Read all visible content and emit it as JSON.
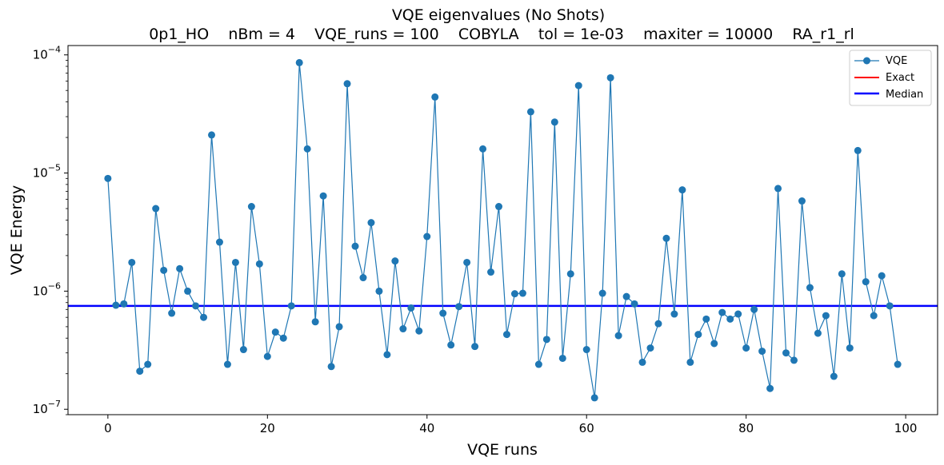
{
  "chart_data": {
    "type": "line",
    "title": "VQE eigenvalues (No Shots)",
    "subtitle": "0p1_HO    nBm = 4    VQE_runs = 100    COBYLA    tol = 1e-03    maxiter = 10000    RA_r1_rl",
    "xlabel": "VQE runs",
    "ylabel": "VQE Energy",
    "xlim": [
      -5,
      104
    ],
    "ylim": [
      9e-08,
      0.00012
    ],
    "yscale": "log",
    "xticks": [
      0,
      20,
      40,
      60,
      80,
      100
    ],
    "xtick_labels": [
      "0",
      "20",
      "40",
      "60",
      "80",
      "100"
    ],
    "yticks": [
      1e-07,
      1e-06,
      1e-05,
      0.0001
    ],
    "ytick_labels": [
      {
        "base": "10",
        "exp": "−7"
      },
      {
        "base": "10",
        "exp": "−6"
      },
      {
        "base": "10",
        "exp": "−5"
      },
      {
        "base": "10",
        "exp": "−4"
      }
    ],
    "grid": false,
    "legend_position": "top-right",
    "legend": [
      {
        "label": "VQE",
        "color": "#1f77b4",
        "marker": "circle"
      },
      {
        "label": "Exact",
        "color": "#ff0000"
      },
      {
        "label": "Median",
        "color": "#0000ff"
      }
    ],
    "series": [
      {
        "name": "VQE",
        "color": "#1f77b4",
        "x": [
          0,
          1,
          2,
          3,
          4,
          5,
          6,
          7,
          8,
          9,
          10,
          11,
          12,
          13,
          14,
          15,
          16,
          17,
          18,
          19,
          20,
          21,
          22,
          23,
          24,
          25,
          26,
          27,
          28,
          29,
          30,
          31,
          32,
          33,
          34,
          35,
          36,
          37,
          38,
          39,
          40,
          41,
          42,
          43,
          44,
          45,
          46,
          47,
          48,
          49,
          50,
          51,
          52,
          53,
          54,
          55,
          56,
          57,
          58,
          59,
          60,
          61,
          62,
          63,
          64,
          65,
          66,
          67,
          68,
          69,
          70,
          71,
          72,
          73,
          74,
          75,
          76,
          77,
          78,
          79,
          80,
          81,
          82,
          83,
          84,
          85,
          86,
          87,
          88,
          89,
          90,
          91,
          92,
          93,
          94,
          95,
          96,
          97,
          98,
          99
        ],
        "y": [
          9e-06,
          7.6e-07,
          7.8e-07,
          1.75e-06,
          2.1e-07,
          2.4e-07,
          5e-06,
          1.5e-06,
          6.5e-07,
          1.55e-06,
          1e-06,
          7.5e-07,
          6e-07,
          2.1e-05,
          2.6e-06,
          2.4e-07,
          1.75e-06,
          3.2e-07,
          5.2e-06,
          1.7e-06,
          2.8e-07,
          4.5e-07,
          4e-07,
          7.5e-07,
          8.6e-05,
          1.6e-05,
          5.5e-07,
          6.4e-06,
          2.3e-07,
          5e-07,
          5.7e-05,
          2.4e-06,
          1.3e-06,
          3.8e-06,
          1e-06,
          2.9e-07,
          1.8e-06,
          4.8e-07,
          7.2e-07,
          4.6e-07,
          2.9e-06,
          4.4e-05,
          6.5e-07,
          3.5e-07,
          7.4e-07,
          1.75e-06,
          3.4e-07,
          1.6e-05,
          1.45e-06,
          5.2e-06,
          4.3e-07,
          9.5e-07,
          9.6e-07,
          3.3e-05,
          2.4e-07,
          3.9e-07,
          2.7e-05,
          2.7e-07,
          1.4e-06,
          5.5e-05,
          3.2e-07,
          1.25e-07,
          9.6e-07,
          6.4e-05,
          4.2e-07,
          9e-07,
          7.8e-07,
          2.5e-07,
          3.3e-07,
          5.3e-07,
          2.8e-06,
          6.4e-07,
          7.2e-06,
          2.5e-07,
          4.3e-07,
          5.8e-07,
          3.6e-07,
          6.6e-07,
          5.8e-07,
          6.4e-07,
          3.3e-07,
          7e-07,
          3.1e-07,
          1.5e-07,
          7.4e-06,
          3e-07,
          2.6e-07,
          5.8e-06,
          1.07e-06,
          4.4e-07,
          6.2e-07,
          1.9e-07,
          1.4e-06,
          3.3e-07,
          1.55e-05,
          1.2e-06,
          6.2e-07,
          1.35e-06,
          7.5e-07,
          2.4e-07
        ]
      },
      {
        "name": "Median",
        "color": "#0000ff",
        "value": 7.5e-07
      }
    ]
  }
}
